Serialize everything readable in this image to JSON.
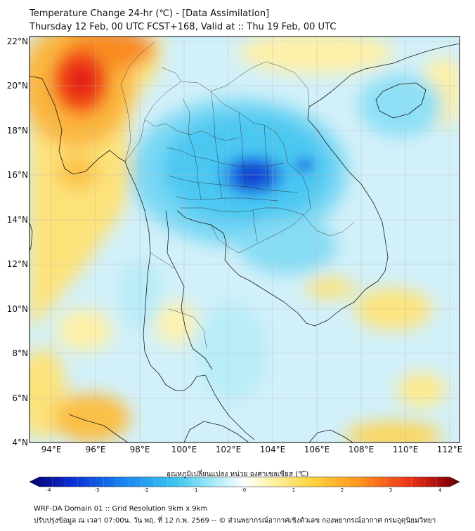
{
  "header": {
    "title_line1": "Temperature Change 24-hr (℃) - [Data Assimilation]",
    "title_line2": "Thursday 12 Feb, 00 UTC FCST+168, Valid at :: Thu 19 Feb, 00 UTC"
  },
  "map": {
    "lat_labels": [
      "22°N",
      "20°N",
      "18°N",
      "16°N",
      "14°N",
      "12°N",
      "10°N",
      "8°N",
      "6°N",
      "4°N"
    ],
    "lon_labels": [
      "94°E",
      "96°E",
      "98°E",
      "100°E",
      "102°E",
      "104°E",
      "106°E",
      "108°E",
      "110°E",
      "112°E"
    ],
    "extent": {
      "lon_min": 93,
      "lon_max": 112.5,
      "lat_min": 4,
      "lat_max": 22.2
    }
  },
  "colorbar": {
    "title": "อุณหภูมิเปลี่ยนแปลง หน่วย องศาเซลเซียส (℃)",
    "ticks": [
      "-4",
      "-3",
      "-2",
      "-1",
      "0",
      "1",
      "2",
      "3",
      "4"
    ],
    "min": -4,
    "max": 4,
    "colors": [
      "#08006b",
      "#0a2fd6",
      "#1a86f0",
      "#3cc6f0",
      "#b4eef8",
      "#ffffff",
      "#fff4a8",
      "#ffd23a",
      "#ff9a1e",
      "#f0361a",
      "#a00a0a",
      "#5a0000"
    ]
  },
  "footer": {
    "line1": "WRF-DA Domain 01 :: Grid Resolution 9km x 9km",
    "line2": "ปรับปรุงข้อมูล ณ เวลา 07:00น. วัน พฤ. ที่ 12 ก.พ. 2569 -- © ส่วนพยากรณ์อากาศเชิงตัวเลข กองพยากรณ์อากาศ กรมอุตุนิยมวิทยา"
  }
}
